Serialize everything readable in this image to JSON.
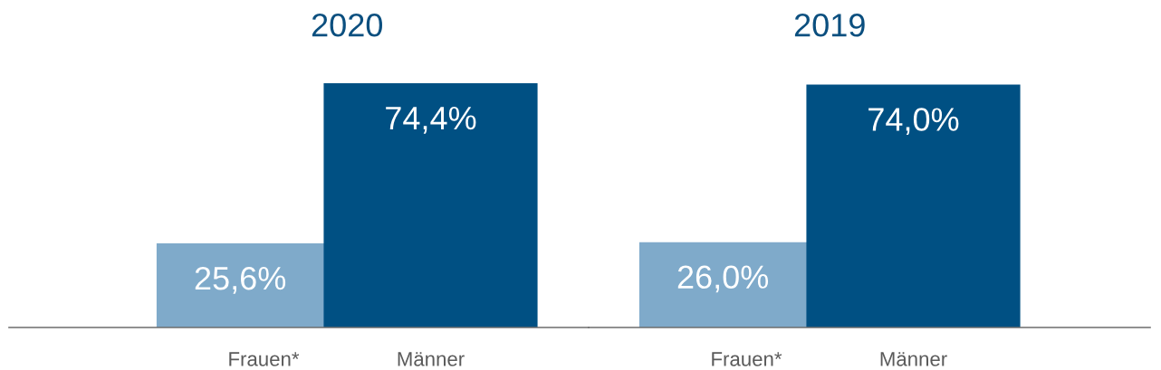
{
  "chart_data": [
    {
      "type": "bar",
      "title": "2020",
      "categories": [
        "Frauen*",
        "Männer"
      ],
      "values": [
        25.6,
        74.4
      ],
      "colors": [
        "#7faaca",
        "#005083"
      ],
      "value_labels": [
        "25,6%",
        "74,4%"
      ]
    },
    {
      "type": "bar",
      "title": "2019",
      "categories": [
        "Frauen*",
        "Männer"
      ],
      "values": [
        26.0,
        74.0
      ],
      "colors": [
        "#7faaca",
        "#005083"
      ],
      "value_labels": [
        "26,0%",
        "74,0%"
      ]
    }
  ]
}
